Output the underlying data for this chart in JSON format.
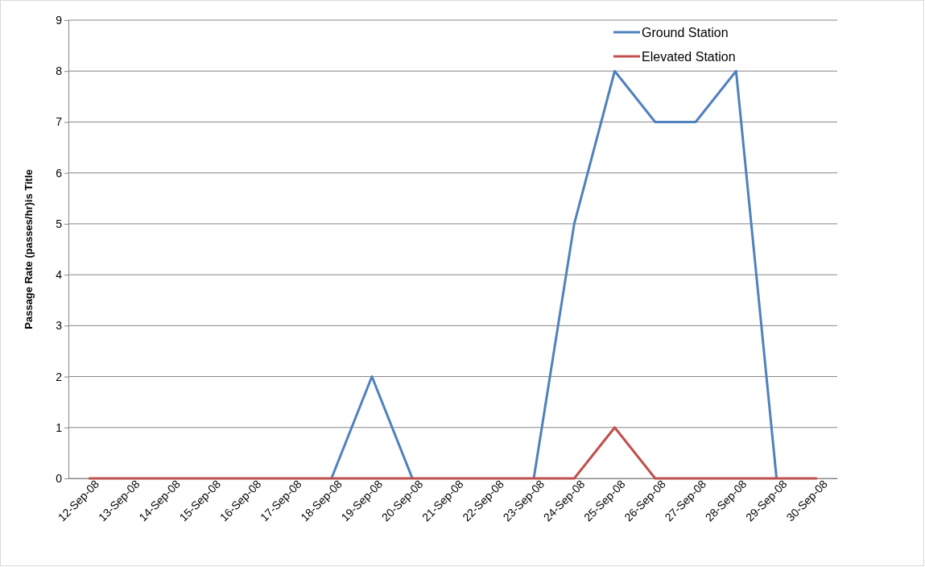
{
  "chart_data": {
    "type": "line",
    "ylabel": "Passage Rate (passes/hr)is Title",
    "categories": [
      "12-Sep-08",
      "13-Sep-08",
      "14-Sep-08",
      "15-Sep-08",
      "16-Sep-08",
      "17-Sep-08",
      "18-Sep-08",
      "19-Sep-08",
      "20-Sep-08",
      "21-Sep-08",
      "22-Sep-08",
      "23-Sep-08",
      "24-Sep-08",
      "25-Sep-08",
      "26-Sep-08",
      "27-Sep-08",
      "28-Sep-08",
      "29-Sep-08",
      "30-Sep-08"
    ],
    "series": [
      {
        "name": "Ground Station",
        "color": "#4f81bd",
        "values": [
          null,
          null,
          null,
          null,
          null,
          null,
          0,
          2,
          0,
          null,
          null,
          0,
          5,
          8,
          7,
          7,
          8,
          0,
          null
        ]
      },
      {
        "name": "Elevated Station",
        "color": "#c0504d",
        "values": [
          0,
          0,
          0,
          0,
          0,
          0,
          0,
          0,
          0,
          0,
          0,
          0,
          0,
          1,
          0,
          0,
          0,
          0,
          0
        ]
      }
    ],
    "ylim": [
      0,
      9
    ],
    "yticks": [
      0,
      1,
      2,
      3,
      4,
      5,
      6,
      7,
      8,
      9
    ],
    "grid": "y",
    "legend": "top right",
    "marker": "none",
    "line_style": "solid"
  }
}
